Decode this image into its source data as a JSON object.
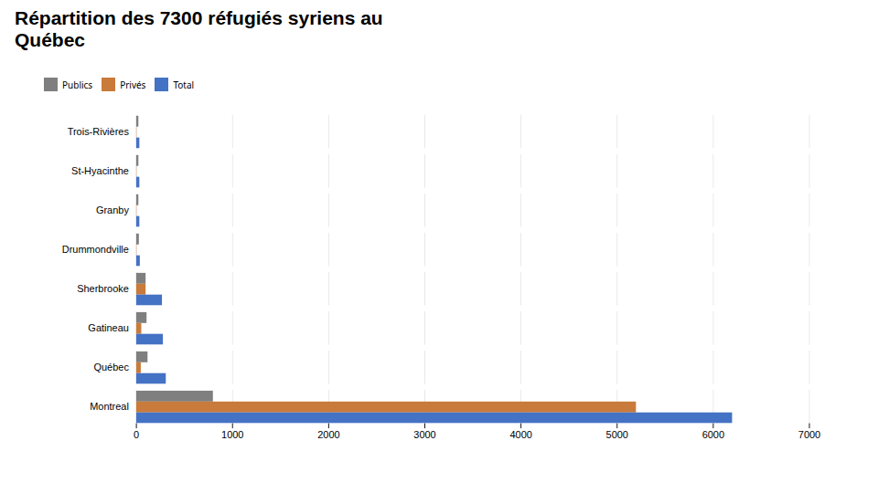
{
  "chart_data": {
    "type": "bar",
    "orientation": "horizontal",
    "title": "Répartition des 7300 réfugiés syriens au\nQuébec",
    "categories": [
      "Montreal",
      "Québec",
      "Gatineau",
      "Sherbrooke",
      "Drummondville",
      "Granby",
      "St-Hyacinthe",
      "Trois-Rivières"
    ],
    "series": [
      {
        "name": "Publics",
        "color": "#7f7f7f",
        "values": [
          800,
          120,
          110,
          100,
          30,
          25,
          25,
          25
        ]
      },
      {
        "name": "Privés",
        "color": "#c87b3a",
        "values": [
          5200,
          50,
          55,
          100,
          5,
          5,
          5,
          5
        ]
      },
      {
        "name": "Total",
        "color": "#4472c4",
        "values": [
          6200,
          310,
          280,
          270,
          40,
          35,
          35,
          35
        ]
      }
    ],
    "xlim": [
      0,
      7000
    ],
    "xticks": [
      0,
      1000,
      2000,
      3000,
      4000,
      5000,
      6000,
      7000
    ],
    "grid": true,
    "legend": "top"
  }
}
